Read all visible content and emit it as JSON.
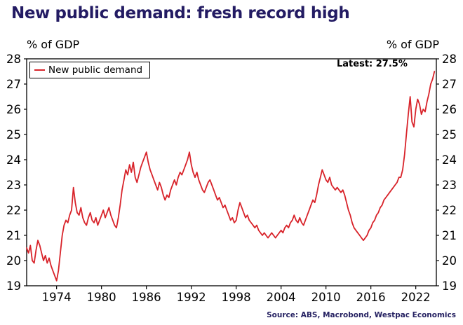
{
  "title": "New public demand: fresh record high",
  "axes": {
    "y_label_left": "% of GDP",
    "y_label_right": "% of GDP"
  },
  "legend": {
    "label": "New public demand"
  },
  "annotation": {
    "text": "Latest: 27.5%"
  },
  "source": "Source: ABS, Macrobond, Westpac Economics",
  "colors": {
    "line": "#d8232a",
    "title": "#231b63",
    "source_text": "#262262",
    "axis": "#000000"
  },
  "chart_data": {
    "type": "line",
    "title": "New public demand: fresh record high",
    "xlabel": "",
    "ylabel": "% of GDP",
    "xlim": [
      1970,
      2024.75
    ],
    "ylim": [
      19,
      28
    ],
    "y_ticks": [
      19,
      20,
      21,
      22,
      23,
      24,
      25,
      26,
      27,
      28
    ],
    "x_ticks": [
      1974,
      1980,
      1986,
      1992,
      1998,
      2004,
      2010,
      2016,
      2022
    ],
    "grid": false,
    "legend_position": "top-left",
    "annotation": "Latest: 27.5%",
    "latest_value": 27.5,
    "x_start": 1970.0,
    "x_step": 0.25,
    "series": [
      {
        "name": "New public demand",
        "color": "#d8232a",
        "values": [
          20.5,
          20.3,
          20.6,
          20.0,
          19.9,
          20.4,
          20.8,
          20.6,
          20.3,
          20.0,
          20.2,
          19.9,
          20.1,
          19.8,
          19.6,
          19.4,
          19.2,
          19.6,
          20.3,
          21.0,
          21.4,
          21.6,
          21.5,
          21.8,
          22.0,
          22.9,
          22.3,
          21.9,
          21.8,
          22.1,
          21.7,
          21.5,
          21.4,
          21.7,
          21.9,
          21.6,
          21.5,
          21.7,
          21.4,
          21.6,
          21.8,
          22.0,
          21.7,
          21.9,
          22.1,
          21.8,
          21.6,
          21.4,
          21.3,
          21.7,
          22.2,
          22.8,
          23.2,
          23.6,
          23.4,
          23.8,
          23.5,
          23.9,
          23.3,
          23.1,
          23.4,
          23.7,
          23.9,
          24.1,
          24.3,
          23.9,
          23.6,
          23.4,
          23.2,
          23.0,
          22.8,
          23.1,
          22.9,
          22.6,
          22.4,
          22.6,
          22.5,
          22.8,
          23.0,
          23.2,
          23.0,
          23.3,
          23.5,
          23.4,
          23.6,
          23.8,
          24.0,
          24.3,
          23.8,
          23.5,
          23.3,
          23.5,
          23.2,
          23.0,
          22.8,
          22.7,
          22.9,
          23.1,
          23.2,
          23.0,
          22.8,
          22.6,
          22.4,
          22.5,
          22.3,
          22.1,
          22.2,
          22.0,
          21.8,
          21.6,
          21.7,
          21.5,
          21.6,
          22.0,
          22.3,
          22.1,
          21.9,
          21.7,
          21.8,
          21.6,
          21.5,
          21.4,
          21.3,
          21.4,
          21.2,
          21.1,
          21.0,
          21.1,
          21.0,
          20.9,
          21.0,
          21.1,
          21.0,
          20.9,
          21.0,
          21.1,
          21.2,
          21.1,
          21.3,
          21.4,
          21.3,
          21.5,
          21.6,
          21.8,
          21.6,
          21.5,
          21.7,
          21.5,
          21.4,
          21.6,
          21.8,
          22.0,
          22.2,
          22.4,
          22.3,
          22.6,
          23.0,
          23.3,
          23.6,
          23.4,
          23.2,
          23.1,
          23.3,
          23.0,
          22.9,
          22.8,
          22.9,
          22.8,
          22.7,
          22.8,
          22.6,
          22.3,
          22.0,
          21.8,
          21.5,
          21.3,
          21.2,
          21.1,
          21.0,
          20.9,
          20.8,
          20.9,
          21.0,
          21.2,
          21.3,
          21.5,
          21.6,
          21.8,
          21.9,
          22.1,
          22.2,
          22.4,
          22.5,
          22.6,
          22.7,
          22.8,
          22.9,
          23.0,
          23.1,
          23.3,
          23.3,
          23.6,
          24.2,
          25.0,
          25.8,
          26.5,
          25.5,
          25.3,
          26.0,
          26.4,
          26.2,
          25.8,
          26.0,
          25.9,
          26.3,
          26.6,
          27.0,
          27.2,
          27.5
        ]
      }
    ]
  }
}
